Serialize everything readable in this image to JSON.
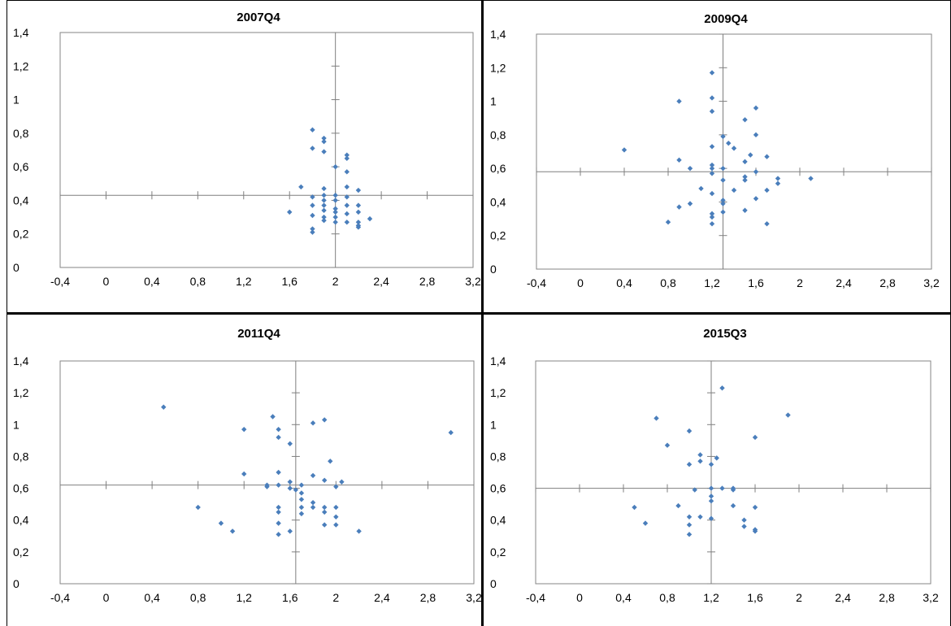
{
  "colors": {
    "marker": "#4A7EBB",
    "frame": "#868686",
    "axis": "#7F7F7F",
    "cell_border": "#000000"
  },
  "chart_data": [
    {
      "type": "scatter",
      "title": "2007Q4",
      "xlabel": "",
      "ylabel": "",
      "xlim": [
        -0.4,
        3.2
      ],
      "ylim": [
        0,
        1.4
      ],
      "x_ticks": [
        "-0,4",
        "0",
        "0,4",
        "0,8",
        "1,2",
        "1,6",
        "2",
        "2,4",
        "2,8",
        "3,2"
      ],
      "y_ticks": [
        "0",
        "0,2",
        "0,4",
        "0,6",
        "0,8",
        "1",
        "1,2",
        "1,4"
      ],
      "axes_cross": {
        "x": 2.0,
        "y": 0.43
      },
      "grid": false,
      "legend": "none",
      "points": [
        [
          1.6,
          0.33
        ],
        [
          1.7,
          0.48
        ],
        [
          1.8,
          0.82
        ],
        [
          1.8,
          0.71
        ],
        [
          1.8,
          0.42
        ],
        [
          1.8,
          0.37
        ],
        [
          1.8,
          0.31
        ],
        [
          1.8,
          0.23
        ],
        [
          1.8,
          0.21
        ],
        [
          1.9,
          0.77
        ],
        [
          1.9,
          0.75
        ],
        [
          1.9,
          0.69
        ],
        [
          1.9,
          0.47
        ],
        [
          1.9,
          0.43
        ],
        [
          1.9,
          0.4
        ],
        [
          1.9,
          0.37
        ],
        [
          1.9,
          0.34
        ],
        [
          1.9,
          0.3
        ],
        [
          1.9,
          0.28
        ],
        [
          2.0,
          0.6
        ],
        [
          2.0,
          0.43
        ],
        [
          2.0,
          0.4
        ],
        [
          2.0,
          0.35
        ],
        [
          2.0,
          0.33
        ],
        [
          2.0,
          0.3
        ],
        [
          2.0,
          0.27
        ],
        [
          2.1,
          0.67
        ],
        [
          2.1,
          0.65
        ],
        [
          2.1,
          0.57
        ],
        [
          2.1,
          0.48
        ],
        [
          2.1,
          0.42
        ],
        [
          2.1,
          0.37
        ],
        [
          2.1,
          0.32
        ],
        [
          2.1,
          0.27
        ],
        [
          2.2,
          0.46
        ],
        [
          2.2,
          0.37
        ],
        [
          2.2,
          0.33
        ],
        [
          2.2,
          0.27
        ],
        [
          2.2,
          0.25
        ],
        [
          2.2,
          0.24
        ],
        [
          2.3,
          0.29
        ]
      ]
    },
    {
      "type": "scatter",
      "title": "2009Q4",
      "xlabel": "",
      "ylabel": "",
      "xlim": [
        -0.4,
        3.2
      ],
      "ylim": [
        0,
        1.4
      ],
      "x_ticks": [
        "-0,4",
        "0",
        "0,4",
        "0,8",
        "1,2",
        "1,6",
        "2",
        "2,4",
        "2,8",
        "3,2"
      ],
      "y_ticks": [
        "0",
        "0,2",
        "0,4",
        "0,6",
        "0,8",
        "1",
        "1,2",
        "1,4"
      ],
      "axes_cross": {
        "x": 1.3,
        "y": 0.58
      },
      "grid": false,
      "legend": "none",
      "points": [
        [
          0.4,
          0.71
        ],
        [
          0.8,
          0.28
        ],
        [
          0.9,
          1.0
        ],
        [
          0.9,
          0.65
        ],
        [
          0.9,
          0.37
        ],
        [
          1.0,
          0.6
        ],
        [
          1.0,
          0.39
        ],
        [
          1.1,
          0.48
        ],
        [
          1.2,
          1.17
        ],
        [
          1.2,
          1.02
        ],
        [
          1.2,
          0.94
        ],
        [
          1.2,
          0.73
        ],
        [
          1.2,
          0.62
        ],
        [
          1.2,
          0.6
        ],
        [
          1.2,
          0.57
        ],
        [
          1.2,
          0.45
        ],
        [
          1.2,
          0.33
        ],
        [
          1.2,
          0.31
        ],
        [
          1.2,
          0.27
        ],
        [
          1.3,
          0.79
        ],
        [
          1.3,
          0.6
        ],
        [
          1.3,
          0.53
        ],
        [
          1.3,
          0.41
        ],
        [
          1.3,
          0.39
        ],
        [
          1.3,
          0.34
        ],
        [
          1.35,
          0.75
        ],
        [
          1.4,
          0.72
        ],
        [
          1.4,
          0.47
        ],
        [
          1.5,
          0.89
        ],
        [
          1.5,
          0.64
        ],
        [
          1.5,
          0.55
        ],
        [
          1.5,
          0.53
        ],
        [
          1.5,
          0.35
        ],
        [
          1.55,
          0.68
        ],
        [
          1.6,
          0.96
        ],
        [
          1.6,
          0.8
        ],
        [
          1.6,
          0.58
        ],
        [
          1.6,
          0.42
        ],
        [
          1.7,
          0.67
        ],
        [
          1.7,
          0.47
        ],
        [
          1.7,
          0.27
        ],
        [
          1.8,
          0.54
        ],
        [
          1.8,
          0.51
        ],
        [
          2.1,
          0.54
        ]
      ]
    },
    {
      "type": "scatter",
      "title": "2011Q4",
      "xlabel": "",
      "ylabel": "",
      "xlim": [
        -0.4,
        3.2
      ],
      "ylim": [
        0,
        1.4
      ],
      "x_ticks": [
        "-0,4",
        "0",
        "0,4",
        "0,8",
        "1,2",
        "1,6",
        "2",
        "2,4",
        "2,8",
        "3,2"
      ],
      "y_ticks": [
        "0",
        "0,2",
        "0,4",
        "0,6",
        "0,8",
        "1",
        "1,2",
        "1,4"
      ],
      "axes_cross": {
        "x": 1.65,
        "y": 0.62
      },
      "grid": false,
      "legend": "none",
      "points": [
        [
          0.5,
          1.11
        ],
        [
          0.8,
          0.48
        ],
        [
          1.0,
          0.38
        ],
        [
          1.1,
          0.33
        ],
        [
          1.2,
          0.97
        ],
        [
          1.2,
          0.69
        ],
        [
          1.4,
          0.62
        ],
        [
          1.4,
          0.61
        ],
        [
          1.45,
          1.05
        ],
        [
          1.5,
          0.97
        ],
        [
          1.5,
          0.92
        ],
        [
          1.5,
          0.7
        ],
        [
          1.5,
          0.62
        ],
        [
          1.5,
          0.48
        ],
        [
          1.5,
          0.45
        ],
        [
          1.5,
          0.38
        ],
        [
          1.5,
          0.31
        ],
        [
          1.6,
          0.88
        ],
        [
          1.6,
          0.64
        ],
        [
          1.6,
          0.6
        ],
        [
          1.6,
          0.33
        ],
        [
          1.65,
          0.59
        ],
        [
          1.7,
          0.62
        ],
        [
          1.7,
          0.57
        ],
        [
          1.7,
          0.53
        ],
        [
          1.7,
          0.48
        ],
        [
          1.7,
          0.44
        ],
        [
          1.8,
          1.01
        ],
        [
          1.8,
          0.68
        ],
        [
          1.8,
          0.51
        ],
        [
          1.8,
          0.48
        ],
        [
          1.9,
          1.03
        ],
        [
          1.9,
          0.65
        ],
        [
          1.9,
          0.48
        ],
        [
          1.9,
          0.45
        ],
        [
          1.9,
          0.37
        ],
        [
          1.95,
          0.77
        ],
        [
          2.0,
          0.61
        ],
        [
          2.0,
          0.48
        ],
        [
          2.0,
          0.42
        ],
        [
          2.0,
          0.37
        ],
        [
          2.05,
          0.64
        ],
        [
          2.2,
          0.33
        ],
        [
          3.0,
          0.95
        ]
      ]
    },
    {
      "type": "scatter",
      "title": "2015Q3",
      "xlabel": "",
      "ylabel": "",
      "xlim": [
        -0.4,
        3.2
      ],
      "ylim": [
        0,
        1.4
      ],
      "x_ticks": [
        "-0,4",
        "0",
        "0,4",
        "0,8",
        "1,2",
        "1,6",
        "2",
        "2,4",
        "2,8",
        "3,2"
      ],
      "y_ticks": [
        "0",
        "0,2",
        "0,4",
        "0,6",
        "0,8",
        "1",
        "1,2",
        "1,4"
      ],
      "axes_cross": {
        "x": 1.2,
        "y": 0.6
      },
      "grid": false,
      "legend": "none",
      "points": [
        [
          0.5,
          0.48
        ],
        [
          0.6,
          0.38
        ],
        [
          0.7,
          1.04
        ],
        [
          0.8,
          0.87
        ],
        [
          0.9,
          0.49
        ],
        [
          1.0,
          0.96
        ],
        [
          1.0,
          0.75
        ],
        [
          1.0,
          0.42
        ],
        [
          1.0,
          0.37
        ],
        [
          1.0,
          0.31
        ],
        [
          1.05,
          0.59
        ],
        [
          1.1,
          0.81
        ],
        [
          1.1,
          0.77
        ],
        [
          1.1,
          0.42
        ],
        [
          1.2,
          0.75
        ],
        [
          1.2,
          0.6
        ],
        [
          1.2,
          0.55
        ],
        [
          1.2,
          0.52
        ],
        [
          1.2,
          0.41
        ],
        [
          1.25,
          0.79
        ],
        [
          1.3,
          1.23
        ],
        [
          1.3,
          0.6
        ],
        [
          1.4,
          0.6
        ],
        [
          1.4,
          0.59
        ],
        [
          1.4,
          0.49
        ],
        [
          1.5,
          0.4
        ],
        [
          1.5,
          0.36
        ],
        [
          1.6,
          0.92
        ],
        [
          1.6,
          0.48
        ],
        [
          1.6,
          0.34
        ],
        [
          1.6,
          0.33
        ],
        [
          1.9,
          1.06
        ]
      ]
    }
  ]
}
